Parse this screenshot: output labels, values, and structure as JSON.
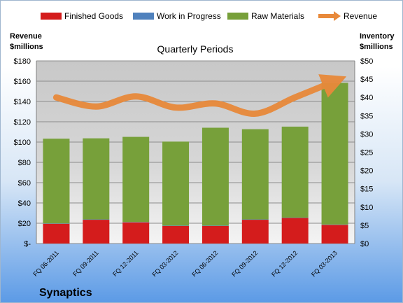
{
  "chart_data": {
    "type": "bar",
    "title": "Quarterly Periods",
    "company": "Synaptics",
    "ylabel_left": [
      "Revenue",
      "$millions"
    ],
    "ylabel_right": [
      "Inventory",
      "$millions"
    ],
    "categories": [
      "FQ 06-2011",
      "FQ 09-2011",
      "FQ 12-2011",
      "FQ 03-2012",
      "FQ 06-2012",
      "FQ 09-2012",
      "FQ 12-2012",
      "FQ 03-2013"
    ],
    "ylim_left": [
      0,
      180
    ],
    "ylim_right": [
      0,
      50
    ],
    "left_ticks": [
      "$-",
      "$20",
      "$40",
      "$60",
      "$80",
      "$100",
      "$120",
      "$140",
      "$160",
      "$180"
    ],
    "right_ticks": [
      "$0",
      "$5",
      "$10",
      "$15",
      "$20",
      "$25",
      "$30",
      "$35",
      "$40",
      "$45",
      "$50"
    ],
    "grid": true,
    "legend_position": "top",
    "series": [
      {
        "name": "Finished Goods",
        "kind": "stacked-bar",
        "axis": "right",
        "color": "#d41c1c",
        "values": [
          5.4,
          6.5,
          5.8,
          4.8,
          4.8,
          6.5,
          7.0,
          5.1
        ]
      },
      {
        "name": "Work in Progress",
        "kind": "stacked-bar",
        "axis": "right",
        "color": "#4f81bd",
        "values": [
          0.1,
          0.1,
          0.1,
          0.1,
          0.1,
          0.1,
          0.1,
          0.1
        ]
      },
      {
        "name": "Raw Materials",
        "kind": "stacked-bar",
        "axis": "right",
        "color": "#77a03a",
        "values": [
          23.2,
          22.2,
          23.3,
          23.0,
          26.8,
          24.7,
          24.9,
          38.8
        ]
      },
      {
        "name": "Revenue",
        "kind": "line",
        "axis": "left",
        "color": "#e8893a",
        "values": [
          144,
          135,
          145,
          134,
          138,
          128,
          144,
          160
        ]
      }
    ]
  }
}
